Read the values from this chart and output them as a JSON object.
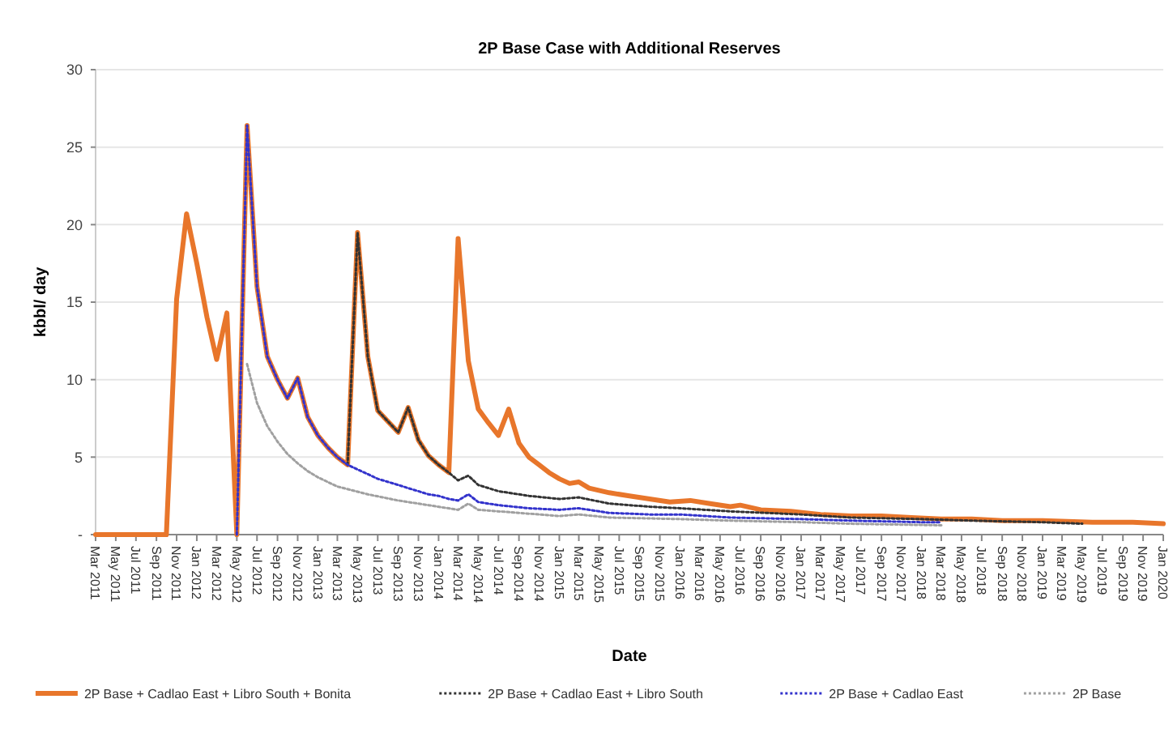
{
  "chart_data": {
    "type": "line",
    "title": "2P Base Case with Additional Reserves",
    "xlabel": "Date",
    "ylabel": "kbbl/ day",
    "xlim": [
      "2011-03",
      "2020-01"
    ],
    "ylim": [
      0,
      30
    ],
    "yticks": [
      {
        "value": 0,
        "label": "-"
      },
      5,
      10,
      15,
      20,
      25,
      30
    ],
    "xticks": [
      {
        "value": "2011-03",
        "label": "Mar 2011"
      },
      {
        "value": "2011-05",
        "label": "May 2011"
      },
      {
        "value": "2011-07",
        "label": "Jul 2011"
      },
      {
        "value": "2011-09",
        "label": "Sep 2011"
      },
      {
        "value": "2011-11",
        "label": "Nov 2011"
      },
      {
        "value": "2012-01",
        "label": "Jan 2012"
      },
      {
        "value": "2012-03",
        "label": "Mar 2012"
      },
      {
        "value": "2012-05",
        "label": "May 2012"
      },
      {
        "value": "2012-07",
        "label": "Jul 2012"
      },
      {
        "value": "2012-09",
        "label": "Sep 2012"
      },
      {
        "value": "2012-11",
        "label": "Nov 2012"
      },
      {
        "value": "2013-01",
        "label": "Jan 2013"
      },
      {
        "value": "2013-03",
        "label": "Mar 2013"
      },
      {
        "value": "2013-05",
        "label": "May 2013"
      },
      {
        "value": "2013-07",
        "label": "Jul 2013"
      },
      {
        "value": "2013-09",
        "label": "Sep 2013"
      },
      {
        "value": "2013-11",
        "label": "Nov 2013"
      },
      {
        "value": "2014-01",
        "label": "Jan 2014"
      },
      {
        "value": "2014-03",
        "label": "Mar 2014"
      },
      {
        "value": "2014-05",
        "label": "May 2014"
      },
      {
        "value": "2014-07",
        "label": "Jul 2014"
      },
      {
        "value": "2014-09",
        "label": "Sep 2014"
      },
      {
        "value": "2014-11",
        "label": "Nov 2014"
      },
      {
        "value": "2015-01",
        "label": "Jan 2015"
      },
      {
        "value": "2015-03",
        "label": "Mar 2015"
      },
      {
        "value": "2015-05",
        "label": "May 2015"
      },
      {
        "value": "2015-07",
        "label": "Jul 2015"
      },
      {
        "value": "2015-09",
        "label": "Sep 2015"
      },
      {
        "value": "2015-11",
        "label": "Nov 2015"
      },
      {
        "value": "2016-01",
        "label": "Jan 2016"
      },
      {
        "value": "2016-03",
        "label": "Mar 2016"
      },
      {
        "value": "2016-05",
        "label": "May 2016"
      },
      {
        "value": "2016-07",
        "label": "Jul 2016"
      },
      {
        "value": "2016-09",
        "label": "Sep 2016"
      },
      {
        "value": "2016-11",
        "label": "Nov 2016"
      },
      {
        "value": "2017-01",
        "label": "Jan 2017"
      },
      {
        "value": "2017-03",
        "label": "Mar 2017"
      },
      {
        "value": "2017-05",
        "label": "May 2017"
      },
      {
        "value": "2017-07",
        "label": "Jul 2017"
      },
      {
        "value": "2017-09",
        "label": "Sep 2017"
      },
      {
        "value": "2017-11",
        "label": "Nov 2017"
      },
      {
        "value": "2018-01",
        "label": "Jan 2018"
      },
      {
        "value": "2018-03",
        "label": "Mar 2018"
      },
      {
        "value": "2018-05",
        "label": "May 2018"
      },
      {
        "value": "2018-07",
        "label": "Jul 2018"
      },
      {
        "value": "2018-09",
        "label": "Sep 2018"
      },
      {
        "value": "2018-11",
        "label": "Nov 2018"
      },
      {
        "value": "2019-01",
        "label": "Jan 2019"
      },
      {
        "value": "2019-03",
        "label": "Mar 2019"
      },
      {
        "value": "2019-05",
        "label": "May 2019"
      },
      {
        "value": "2019-07",
        "label": "Jul 2019"
      },
      {
        "value": "2019-09",
        "label": "Sep 2019"
      },
      {
        "value": "2019-11",
        "label": "Nov 2019"
      },
      {
        "value": "2020-01",
        "label": "Jan 2020"
      }
    ],
    "grid": "y",
    "legend": "bottom",
    "marker": "none",
    "series": [
      {
        "name": "2P Base + Cadlao East + Libro South + Bonita",
        "color": "#e8762b",
        "line_style": "solid",
        "x": [
          "2011-03",
          "2011-10",
          "2011-11",
          "2011-12",
          "2012-01",
          "2012-02",
          "2012-03",
          "2012-04",
          "2012-05",
          "2012-06",
          "2012-07",
          "2012-08",
          "2012-09",
          "2012-10",
          "2012-11",
          "2012-12",
          "2013-01",
          "2013-02",
          "2013-03",
          "2013-04",
          "2013-05",
          "2013-06",
          "2013-07",
          "2013-08",
          "2013-09",
          "2013-10",
          "2013-11",
          "2013-12",
          "2014-01",
          "2014-02",
          "2014-03",
          "2014-04",
          "2014-05",
          "2014-06",
          "2014-07",
          "2014-08",
          "2014-09",
          "2014-10",
          "2014-11",
          "2014-12",
          "2015-01",
          "2015-02",
          "2015-03",
          "2015-04",
          "2015-06",
          "2015-08",
          "2015-10",
          "2015-12",
          "2016-02",
          "2016-04",
          "2016-06",
          "2016-07",
          "2016-09",
          "2016-12",
          "2017-03",
          "2017-06",
          "2017-09",
          "2017-12",
          "2018-03",
          "2018-06",
          "2018-09",
          "2019-01",
          "2019-06",
          "2019-10",
          "2020-01"
        ],
        "values": [
          0,
          0,
          15.2,
          20.7,
          17.5,
          14,
          11.3,
          14.3,
          0,
          26.4,
          16,
          11.5,
          10,
          8.8,
          10.1,
          7.6,
          6.4,
          5.6,
          5,
          4.5,
          19.5,
          11.5,
          8,
          7.3,
          6.6,
          8.2,
          6.1,
          5.1,
          4.5,
          4,
          19.1,
          11.2,
          8.1,
          7.2,
          6.4,
          8.1,
          5.9,
          5,
          4.5,
          4,
          3.6,
          3.3,
          3.4,
          3,
          2.7,
          2.5,
          2.3,
          2.1,
          2.2,
          2,
          1.8,
          1.9,
          1.6,
          1.5,
          1.3,
          1.2,
          1.2,
          1.1,
          1,
          1,
          0.9,
          0.9,
          0.8,
          0.8,
          0.7
        ]
      },
      {
        "name": "2P Base + Cadlao East + Libro South",
        "color": "#333333",
        "line_style": "dotted",
        "x": [
          "2013-04",
          "2013-05",
          "2013-06",
          "2013-07",
          "2013-08",
          "2013-09",
          "2013-10",
          "2013-11",
          "2013-12",
          "2014-01",
          "2014-02",
          "2014-03",
          "2014-04",
          "2014-05",
          "2014-07",
          "2014-10",
          "2015-01",
          "2015-03",
          "2015-06",
          "2015-10",
          "2016-01",
          "2016-06",
          "2017-01",
          "2017-06",
          "2018-01",
          "2018-06",
          "2019-01",
          "2019-05"
        ],
        "values": [
          4.5,
          19.5,
          11.5,
          8,
          7.3,
          6.6,
          8.2,
          6.1,
          5.1,
          4.5,
          4,
          3.5,
          3.8,
          3.2,
          2.8,
          2.5,
          2.3,
          2.4,
          2,
          1.8,
          1.7,
          1.5,
          1.3,
          1.1,
          1,
          0.9,
          0.8,
          0.7
        ]
      },
      {
        "name": "2P Base + Cadlao East",
        "color": "#3333cc",
        "line_style": "dotted",
        "x": [
          "2012-05",
          "2012-06",
          "2012-07",
          "2012-08",
          "2012-09",
          "2012-10",
          "2012-11",
          "2012-12",
          "2013-01",
          "2013-02",
          "2013-03",
          "2013-04",
          "2013-05",
          "2013-06",
          "2013-07",
          "2013-08",
          "2013-09",
          "2013-10",
          "2013-11",
          "2013-12",
          "2014-01",
          "2014-02",
          "2014-03",
          "2014-04",
          "2014-05",
          "2014-07",
          "2014-10",
          "2015-01",
          "2015-03",
          "2015-06",
          "2015-10",
          "2016-01",
          "2016-06",
          "2017-01",
          "2017-06",
          "2018-01",
          "2018-03"
        ],
        "values": [
          0,
          26.4,
          16,
          11.5,
          10,
          8.8,
          10.1,
          7.6,
          6.4,
          5.6,
          5,
          4.5,
          4.2,
          3.9,
          3.6,
          3.4,
          3.2,
          3,
          2.8,
          2.6,
          2.5,
          2.3,
          2.2,
          2.6,
          2.1,
          1.9,
          1.7,
          1.6,
          1.7,
          1.4,
          1.3,
          1.3,
          1.1,
          1,
          0.9,
          0.8,
          0.8
        ]
      },
      {
        "name": "2P Base",
        "color": "#a0a0a0",
        "line_style": "dotted",
        "x": [
          "2012-06",
          "2012-07",
          "2012-08",
          "2012-09",
          "2012-10",
          "2012-11",
          "2012-12",
          "2013-01",
          "2013-03",
          "2013-06",
          "2013-09",
          "2013-12",
          "2014-03",
          "2014-04",
          "2014-05",
          "2014-09",
          "2015-01",
          "2015-03",
          "2015-06",
          "2016-01",
          "2016-06",
          "2017-01",
          "2017-06",
          "2018-03"
        ],
        "values": [
          11,
          8.5,
          7,
          6,
          5.2,
          4.6,
          4.1,
          3.7,
          3.1,
          2.6,
          2.2,
          1.9,
          1.6,
          2,
          1.6,
          1.4,
          1.2,
          1.3,
          1.1,
          1,
          0.9,
          0.8,
          0.7,
          0.6
        ]
      }
    ]
  }
}
